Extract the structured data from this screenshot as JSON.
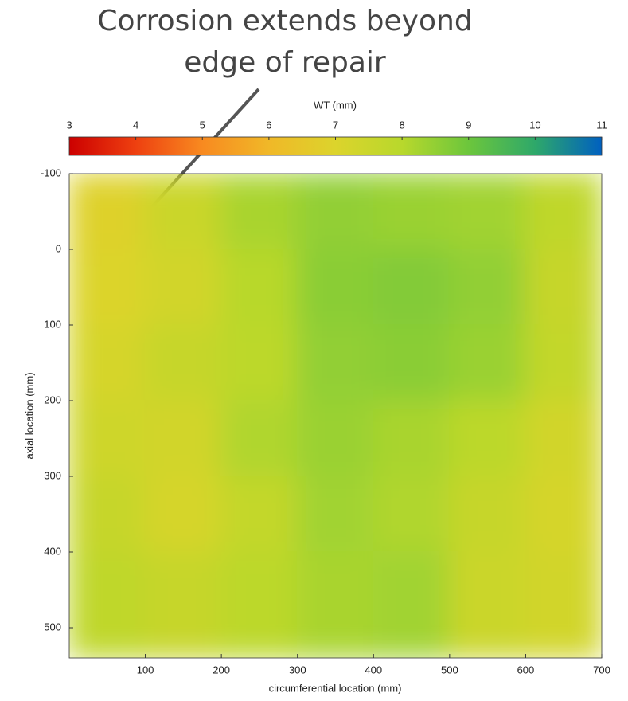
{
  "chart_data": {
    "type": "heatmap",
    "annotation": [
      "Corrosion extends beyond",
      "edge of repair"
    ],
    "colorbar_label": "WT (mm)",
    "clim": [
      3,
      11
    ],
    "cticks": [
      3,
      4,
      5,
      6,
      7,
      8,
      9,
      10,
      11
    ],
    "colormap": [
      "#cc0000",
      "#ee4010",
      "#f88a20",
      "#f0b828",
      "#dcd42c",
      "#b8d82c",
      "#6cc63c",
      "#2ea86a",
      "#0060c0"
    ],
    "x_label": "circumferential location (mm)",
    "y_label": "axial location (mm)",
    "x_edges": [
      0,
      100,
      200,
      300,
      400,
      500,
      600,
      700
    ],
    "y_edges": [
      -100,
      0,
      100,
      200,
      300,
      400,
      540
    ],
    "z": [
      [
        6.9,
        7.5,
        8.2,
        8.5,
        8.4,
        8.3,
        7.8
      ],
      [
        7.0,
        7.3,
        8.0,
        8.6,
        8.7,
        8.5,
        7.6
      ],
      [
        7.2,
        7.6,
        7.9,
        8.5,
        8.6,
        8.4,
        7.7
      ],
      [
        7.4,
        7.3,
        8.1,
        8.4,
        8.2,
        7.9,
        7.3
      ],
      [
        7.6,
        7.2,
        7.7,
        8.3,
        8.1,
        7.6,
        7.2
      ],
      [
        7.8,
        7.6,
        7.9,
        8.2,
        8.3,
        7.5,
        7.3
      ]
    ],
    "xlim": [
      0,
      700
    ],
    "ylim": [
      -100,
      540
    ],
    "xticks": [
      100,
      200,
      300,
      400,
      500,
      600,
      700
    ],
    "yticks": [
      -100,
      0,
      100,
      200,
      300,
      400,
      500
    ]
  }
}
